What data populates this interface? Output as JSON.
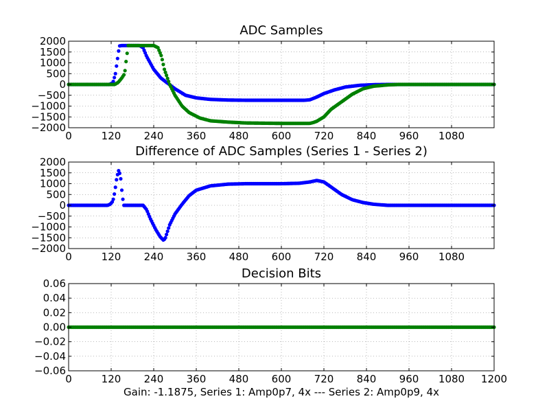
{
  "caption": "Gain: -1.1875, Series 1: Amp0p7, 4x --- Series 2: Amp0p9, 4x",
  "chart_data": [
    {
      "type": "scatter",
      "title": "ADC Samples",
      "xlim": [
        0,
        1200
      ],
      "ylim": [
        -2000,
        2000
      ],
      "xticks": [
        0,
        120,
        240,
        360,
        480,
        600,
        720,
        840,
        960,
        1080
      ],
      "yticks": [
        2000,
        1500,
        1000,
        500,
        0,
        -500,
        -1000,
        -1500,
        -2000
      ],
      "ytick_labels": [
        "2000",
        "1500",
        "1000",
        "500",
        "0",
        "−500",
        "−1000",
        "−1500",
        "−2000"
      ],
      "grid": true,
      "x_range_data": [
        0,
        1200
      ],
      "series": [
        {
          "color": "#0000ff",
          "points": [
            [
              0,
              0
            ],
            [
              115,
              0
            ],
            [
              125,
              80
            ],
            [
              132,
              500
            ],
            [
              138,
              1200
            ],
            [
              143,
              1780
            ],
            [
              150,
              1800
            ],
            [
              200,
              1800
            ],
            [
              210,
              1700
            ],
            [
              220,
              1300
            ],
            [
              240,
              700
            ],
            [
              260,
              300
            ],
            [
              280,
              50
            ],
            [
              300,
              -200
            ],
            [
              330,
              -500
            ],
            [
              360,
              -620
            ],
            [
              400,
              -690
            ],
            [
              450,
              -720
            ],
            [
              500,
              -730
            ],
            [
              600,
              -730
            ],
            [
              665,
              -730
            ],
            [
              680,
              -710
            ],
            [
              700,
              -580
            ],
            [
              720,
              -420
            ],
            [
              750,
              -250
            ],
            [
              780,
              -120
            ],
            [
              820,
              -40
            ],
            [
              860,
              -10
            ],
            [
              900,
              0
            ],
            [
              1200,
              0
            ]
          ]
        },
        {
          "color": "#008000",
          "points": [
            [
              0,
              0
            ],
            [
              130,
              0
            ],
            [
              140,
              100
            ],
            [
              150,
              300
            ],
            [
              158,
              500
            ],
            [
              163,
              1200
            ],
            [
              168,
              1800
            ],
            [
              240,
              1800
            ],
            [
              252,
              1700
            ],
            [
              262,
              1300
            ],
            [
              270,
              700
            ],
            [
              285,
              0
            ],
            [
              300,
              -500
            ],
            [
              320,
              -1000
            ],
            [
              340,
              -1300
            ],
            [
              370,
              -1550
            ],
            [
              400,
              -1680
            ],
            [
              450,
              -1740
            ],
            [
              500,
              -1780
            ],
            [
              600,
              -1800
            ],
            [
              680,
              -1800
            ],
            [
              690,
              -1760
            ],
            [
              700,
              -1700
            ],
            [
              720,
              -1500
            ],
            [
              740,
              -1150
            ],
            [
              770,
              -800
            ],
            [
              800,
              -450
            ],
            [
              830,
              -200
            ],
            [
              860,
              -80
            ],
            [
              900,
              -20
            ],
            [
              930,
              0
            ],
            [
              1200,
              0
            ]
          ]
        }
      ]
    },
    {
      "type": "scatter",
      "title": "Difference of ADC Samples (Series 1 - Series 2)",
      "xlim": [
        0,
        1200
      ],
      "ylim": [
        -2000,
        2000
      ],
      "xticks": [
        0,
        120,
        240,
        360,
        480,
        600,
        720,
        840,
        960,
        1080
      ],
      "yticks": [
        2000,
        1500,
        1000,
        500,
        0,
        -500,
        -1000,
        -1500,
        -2000
      ],
      "ytick_labels": [
        "2000",
        "1500",
        "1000",
        "500",
        "0",
        "−500",
        "−1000",
        "−1500",
        "−2000"
      ],
      "grid": true,
      "x_range_data": [
        0,
        1200
      ],
      "series": [
        {
          "color": "#0000ff",
          "points": [
            [
              0,
              0
            ],
            [
              110,
              0
            ],
            [
              118,
              60
            ],
            [
              125,
              200
            ],
            [
              130,
              600
            ],
            [
              136,
              1300
            ],
            [
              141,
              1600
            ],
            [
              146,
              1400
            ],
            [
              150,
              700
            ],
            [
              155,
              0
            ],
            [
              210,
              0
            ],
            [
              220,
              -200
            ],
            [
              230,
              -600
            ],
            [
              245,
              -1100
            ],
            [
              258,
              -1450
            ],
            [
              268,
              -1620
            ],
            [
              273,
              -1500
            ],
            [
              285,
              -900
            ],
            [
              300,
              -400
            ],
            [
              320,
              50
            ],
            [
              340,
              450
            ],
            [
              360,
              700
            ],
            [
              400,
              900
            ],
            [
              450,
              980
            ],
            [
              500,
              1000
            ],
            [
              600,
              1000
            ],
            [
              650,
              1020
            ],
            [
              680,
              1080
            ],
            [
              700,
              1150
            ],
            [
              720,
              1080
            ],
            [
              740,
              850
            ],
            [
              770,
              500
            ],
            [
              800,
              260
            ],
            [
              830,
              130
            ],
            [
              860,
              50
            ],
            [
              900,
              0
            ],
            [
              1200,
              0
            ]
          ]
        }
      ]
    },
    {
      "type": "scatter",
      "title": "Decision Bits",
      "xlim": [
        0,
        1200
      ],
      "ylim": [
        -0.06,
        0.06
      ],
      "xticks": [
        0,
        120,
        240,
        360,
        480,
        600,
        720,
        840,
        960,
        1080,
        1200
      ],
      "yticks": [
        0.06,
        0.04,
        0.02,
        0.0,
        -0.02,
        -0.04,
        -0.06
      ],
      "ytick_labels": [
        "0.06",
        "0.04",
        "0.02",
        "0.00",
        "−0.02",
        "−0.04",
        "−0.06"
      ],
      "grid": true,
      "x_range_data": [
        0,
        1200
      ],
      "series": [
        {
          "color": "#008000",
          "points": [
            [
              0,
              0
            ],
            [
              1200,
              0
            ]
          ]
        }
      ]
    }
  ]
}
